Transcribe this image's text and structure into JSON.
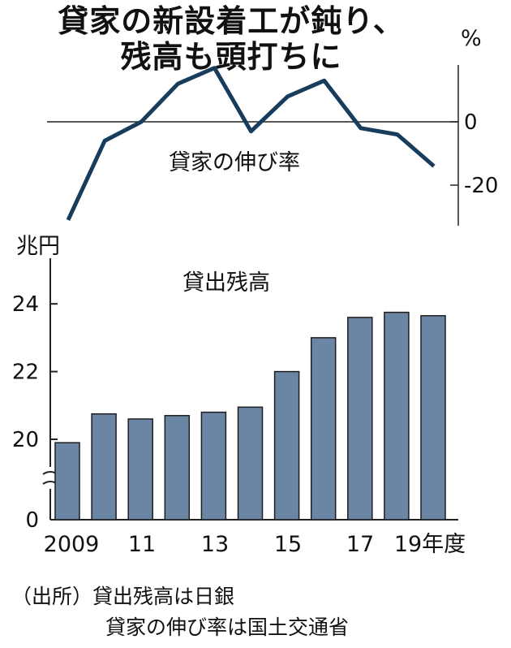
{
  "title_line1": "貸家の新設着工が鈍り、",
  "title_line2": "残高も頭打ちに",
  "source_line1": "（出所）貸出残高は日銀",
  "source_line2": "貸家の伸び率は国土交通省",
  "chart_data": [
    {
      "type": "line",
      "series": [
        {
          "name": "貸家の伸び率",
          "x": [
            2009,
            2010,
            2011,
            2012,
            2013,
            2014,
            2015,
            2016,
            2017,
            2018,
            2019
          ],
          "values": [
            -31,
            -6,
            0,
            12,
            17,
            -3,
            8,
            13,
            -2,
            -4,
            -14
          ]
        }
      ],
      "y_unit": "%",
      "y_ticks": [
        "0",
        "-20"
      ],
      "y_tick_values": [
        0,
        -20
      ],
      "ylim": [
        -31,
        17
      ]
    },
    {
      "type": "bar",
      "title": "貸出残高",
      "ylabel": "兆円",
      "categories": [
        "2009",
        "2010",
        "2011",
        "2012",
        "2013",
        "2014",
        "2015",
        "2016",
        "2017",
        "2018",
        "2019"
      ],
      "values": [
        19.9,
        20.75,
        20.6,
        20.7,
        20.8,
        20.95,
        22.0,
        23.0,
        23.6,
        23.75,
        23.65
      ],
      "x_tick_labels": [
        {
          "category": "2009",
          "label": "2009"
        },
        {
          "category": "2011",
          "label": "11"
        },
        {
          "category": "2013",
          "label": "13"
        },
        {
          "category": "2015",
          "label": "15"
        },
        {
          "category": "2017",
          "label": "17"
        },
        {
          "category": "2019",
          "label": "19年度"
        }
      ],
      "y_ticks": [
        "24",
        "22",
        "20",
        "0"
      ],
      "y_tick_values": [
        24,
        22,
        20,
        0
      ],
      "ylim": [
        18,
        25
      ],
      "axis_break": true,
      "colors": {
        "bar": "#6a86a4",
        "bar_edge": "#1e1e1e",
        "line": "#173c5c"
      }
    }
  ]
}
